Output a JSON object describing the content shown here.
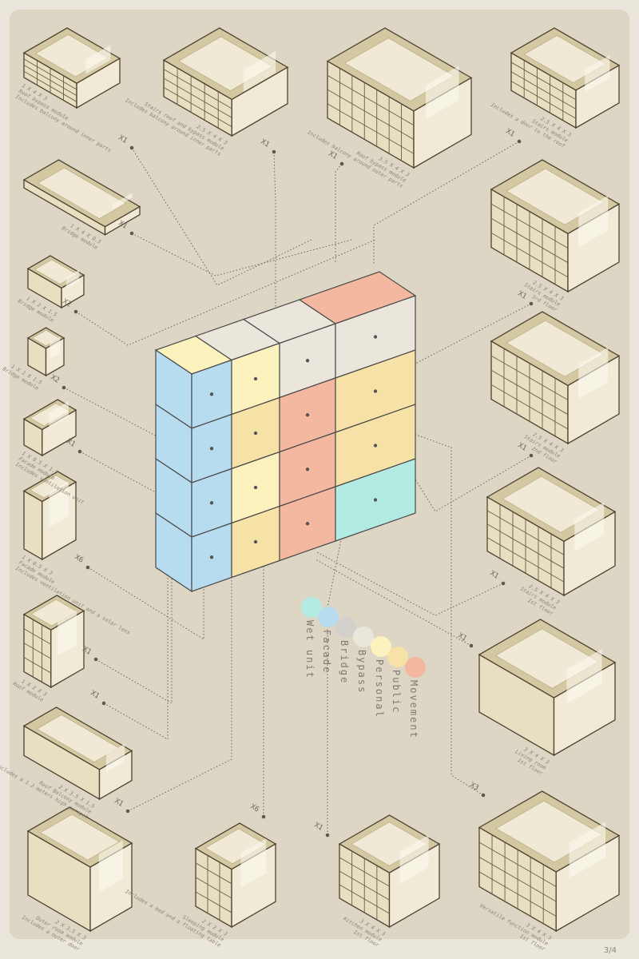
{
  "page_number": "3/4",
  "legend": [
    {
      "label": "Wet unit",
      "color": "#b3eae1"
    },
    {
      "label": "Facade",
      "color": "#b8dcef"
    },
    {
      "label": "Bridge",
      "color": "#d2d0ca"
    },
    {
      "label": "Bypass",
      "color": "#ebe6dc"
    },
    {
      "label": "Personal",
      "color": "#fbf2bd"
    },
    {
      "label": "Public",
      "color": "#f6e2a6"
    },
    {
      "label": "Movement",
      "color": "#f4b8a0"
    }
  ],
  "modules": [
    {
      "dimensions": "1 X 4 X 3",
      "name": "Roof bypass module",
      "note": "Includes balcony around inner parts",
      "quantity": "X1"
    },
    {
      "dimensions": "2.5 X 4 X 3",
      "name": "Stairs roof and bypass module",
      "note": "Includes balcony around inner parts",
      "quantity": "X1"
    },
    {
      "dimensions": "3.5 X 4 X 3",
      "name": "Roof bypass module",
      "note": "Includes balcony around outer parts",
      "quantity": "X1"
    },
    {
      "dimensions": "2.5 X 4 X 3",
      "name": "Stairs module",
      "note": "Includes a door to the roof",
      "quantity": "X1"
    },
    {
      "dimensions": "1 X 4 X 0.3",
      "name": "Bridge module",
      "note": "",
      "quantity": "X1"
    },
    {
      "dimensions": "1 X 2 X 1.5",
      "name": "Bridge module",
      "note": "",
      "quantity": "X2"
    },
    {
      "dimensions": "1 X 1 X 1.5",
      "name": "Bridge module",
      "note": "",
      "quantity": "X2"
    },
    {
      "dimensions": "1 X 0.5 X 1.5",
      "name": "Facade module",
      "note": "Includes ventilation unit",
      "quantity": "X1"
    },
    {
      "dimensions": "1 X 0.5 X 3",
      "name": "Facade module",
      "note": "Includes ventilation unit and a solar lens",
      "quantity": "X6"
    },
    {
      "dimensions": "1 X 2 X 3",
      "name": "Roof module",
      "note": "",
      "quantity": "X1"
    },
    {
      "dimensions": "2 X 3.5 X 1.5",
      "name": "Roof Balcony module",
      "note": "Includes a 1.2 meters high parapet",
      "quantity": "X1"
    },
    {
      "dimensions": "2 X 3.5 X 3",
      "name": "Outer room module",
      "note": "Includes a outer door",
      "quantity": "X1"
    },
    {
      "dimensions": "2.5 X 4 X 3",
      "name": "Stairs module",
      "note": "3rd floor",
      "quantity": "X1"
    },
    {
      "dimensions": "2.5 X 4 X 3",
      "name": "Stairs module",
      "note": "2nd floor",
      "quantity": "X1"
    },
    {
      "dimensions": "2.5 X 4 X 3",
      "name": "Stairs module",
      "note": "1st floor",
      "quantity": "X1"
    },
    {
      "dimensions": "3 X 4 X 3",
      "name": "Living room",
      "note": "1st floor",
      "quantity": "X1"
    },
    {
      "dimensions": "3 X 4 X 3",
      "name": "Versatile function module",
      "note": "1st floor",
      "quantity": "X3"
    },
    {
      "dimensions": "2 X 2 X 3",
      "name": "Sleeping module",
      "note": "Includes a bed and a floating table",
      "quantity": "X6"
    },
    {
      "dimensions": "3 X 4 X 3",
      "name": "Kitchen module",
      "note": "1st floor",
      "quantity": "X1"
    }
  ]
}
